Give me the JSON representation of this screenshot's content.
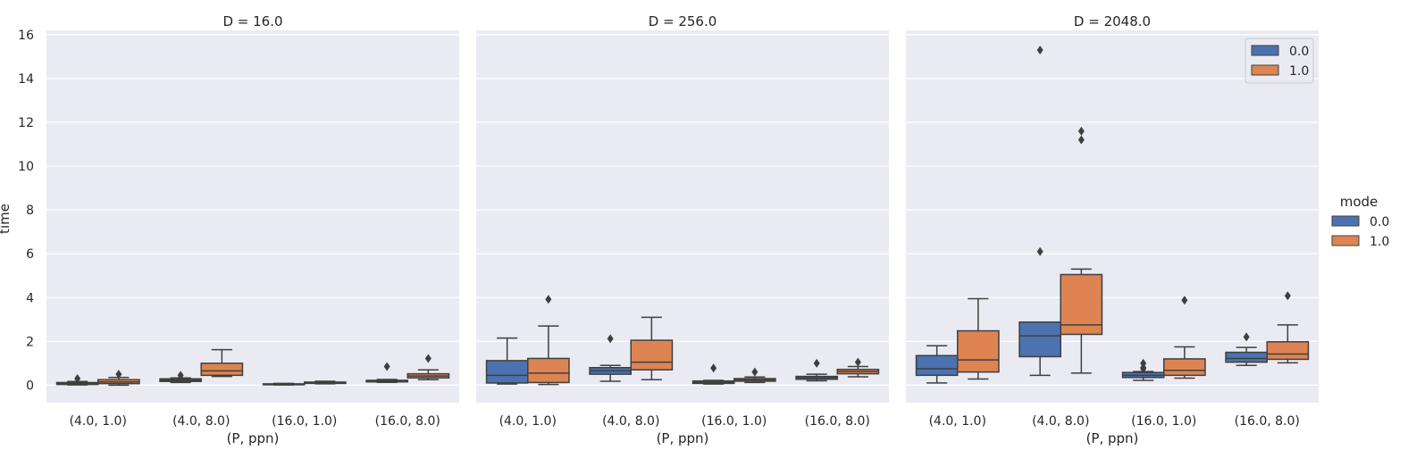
{
  "chart_data": {
    "type": "box",
    "ylabel": "time",
    "xlabel": "(P, ppn)",
    "ylim": [
      -0.8,
      16.2
    ],
    "yticks": [
      0,
      2,
      4,
      6,
      8,
      10,
      12,
      14,
      16
    ],
    "categories": [
      "(4.0, 1.0)",
      "(4.0, 8.0)",
      "(16.0, 1.0)",
      "(16.0, 8.0)"
    ],
    "grid": true,
    "legend": {
      "title": "mode",
      "placement": "right",
      "entries": [
        {
          "label": "0.0",
          "color": "#4c72b0"
        },
        {
          "label": "1.0",
          "color": "#dd8452"
        }
      ]
    },
    "facet_legend": {
      "placement": "top-right",
      "panel_index": 2
    },
    "colors": {
      "mode0": "#4c72b0",
      "mode1": "#dd8452",
      "panel_bg": "#eaeaf2",
      "grid": "#ffffff",
      "line": "#3f3f3f"
    },
    "panels": [
      {
        "title": "D = 16.0",
        "series": [
          {
            "name": "0.0",
            "boxes": [
              {
                "whislo": 0.01,
                "q1": 0.03,
                "med": 0.07,
                "q3": 0.12,
                "whishi": 0.17,
                "fliers": [
                  0.3
                ]
              },
              {
                "whislo": 0.12,
                "q1": 0.17,
                "med": 0.23,
                "q3": 0.29,
                "whishi": 0.33,
                "fliers": [
                  0.45
                ]
              },
              {
                "whislo": 0.01,
                "q1": 0.02,
                "med": 0.04,
                "q3": 0.06,
                "whishi": 0.08,
                "fliers": []
              },
              {
                "whislo": 0.13,
                "q1": 0.15,
                "med": 0.18,
                "q3": 0.22,
                "whishi": 0.26,
                "fliers": [
                  0.85
                ]
              }
            ]
          },
          {
            "name": "1.0",
            "boxes": [
              {
                "whislo": 0.0,
                "q1": 0.07,
                "med": 0.15,
                "q3": 0.25,
                "whishi": 0.35,
                "fliers": [
                  0.5
                ]
              },
              {
                "whislo": 0.4,
                "q1": 0.45,
                "med": 0.65,
                "q3": 1.0,
                "whishi": 1.62,
                "fliers": []
              },
              {
                "whislo": 0.06,
                "q1": 0.08,
                "med": 0.11,
                "q3": 0.14,
                "whishi": 0.18,
                "fliers": []
              },
              {
                "whislo": 0.25,
                "q1": 0.33,
                "med": 0.42,
                "q3": 0.52,
                "whishi": 0.7,
                "fliers": [
                  1.22
                ]
              }
            ]
          }
        ]
      },
      {
        "title": "D = 256.0",
        "series": [
          {
            "name": "0.0",
            "boxes": [
              {
                "whislo": 0.05,
                "q1": 0.1,
                "med": 0.45,
                "q3": 1.12,
                "whishi": 2.15,
                "fliers": []
              },
              {
                "whislo": 0.18,
                "q1": 0.5,
                "med": 0.65,
                "q3": 0.8,
                "whishi": 0.9,
                "fliers": [
                  2.12
                ]
              },
              {
                "whislo": 0.05,
                "q1": 0.08,
                "med": 0.12,
                "q3": 0.19,
                "whishi": 0.22,
                "fliers": [
                  0.78
                ]
              },
              {
                "whislo": 0.2,
                "q1": 0.27,
                "med": 0.34,
                "q3": 0.4,
                "whishi": 0.5,
                "fliers": [
                  1.0
                ]
              }
            ]
          },
          {
            "name": "1.0",
            "boxes": [
              {
                "whislo": 0.03,
                "q1": 0.12,
                "med": 0.55,
                "q3": 1.22,
                "whishi": 2.7,
                "fliers": [
                  3.92
                ]
              },
              {
                "whislo": 0.25,
                "q1": 0.7,
                "med": 1.05,
                "q3": 2.05,
                "whishi": 3.1,
                "fliers": []
              },
              {
                "whislo": 0.12,
                "q1": 0.18,
                "med": 0.24,
                "q3": 0.3,
                "whishi": 0.37,
                "fliers": [
                  0.6
                ]
              },
              {
                "whislo": 0.38,
                "q1": 0.52,
                "med": 0.62,
                "q3": 0.72,
                "whishi": 0.85,
                "fliers": [
                  1.05
                ]
              }
            ]
          }
        ]
      },
      {
        "title": "D = 2048.0",
        "series": [
          {
            "name": "0.0",
            "boxes": [
              {
                "whislo": 0.1,
                "q1": 0.45,
                "med": 0.75,
                "q3": 1.35,
                "whishi": 1.8,
                "fliers": []
              },
              {
                "whislo": 0.45,
                "q1": 1.3,
                "med": 2.25,
                "q3": 2.88,
                "whishi": 2.88,
                "fliers": [
                  6.1,
                  15.3
                ]
              },
              {
                "whislo": 0.22,
                "q1": 0.35,
                "med": 0.45,
                "q3": 0.58,
                "whishi": 0.62,
                "fliers": [
                  0.75,
                  0.8,
                  1.0
                ]
              },
              {
                "whislo": 0.9,
                "q1": 1.05,
                "med": 1.22,
                "q3": 1.5,
                "whishi": 1.72,
                "fliers": [
                  2.2
                ]
              }
            ]
          },
          {
            "name": "1.0",
            "boxes": [
              {
                "whislo": 0.28,
                "q1": 0.6,
                "med": 1.15,
                "q3": 2.48,
                "whishi": 3.95,
                "fliers": []
              },
              {
                "whislo": 0.55,
                "q1": 2.32,
                "med": 2.75,
                "q3": 5.05,
                "whishi": 5.3,
                "fliers": [
                  11.2,
                  11.6
                ]
              },
              {
                "whislo": 0.32,
                "q1": 0.45,
                "med": 0.68,
                "q3": 1.2,
                "whishi": 1.75,
                "fliers": [
                  3.88
                ]
              },
              {
                "whislo": 1.02,
                "q1": 1.18,
                "med": 1.42,
                "q3": 1.98,
                "whishi": 2.75,
                "fliers": [
                  4.08
                ]
              }
            ]
          }
        ]
      }
    ]
  }
}
